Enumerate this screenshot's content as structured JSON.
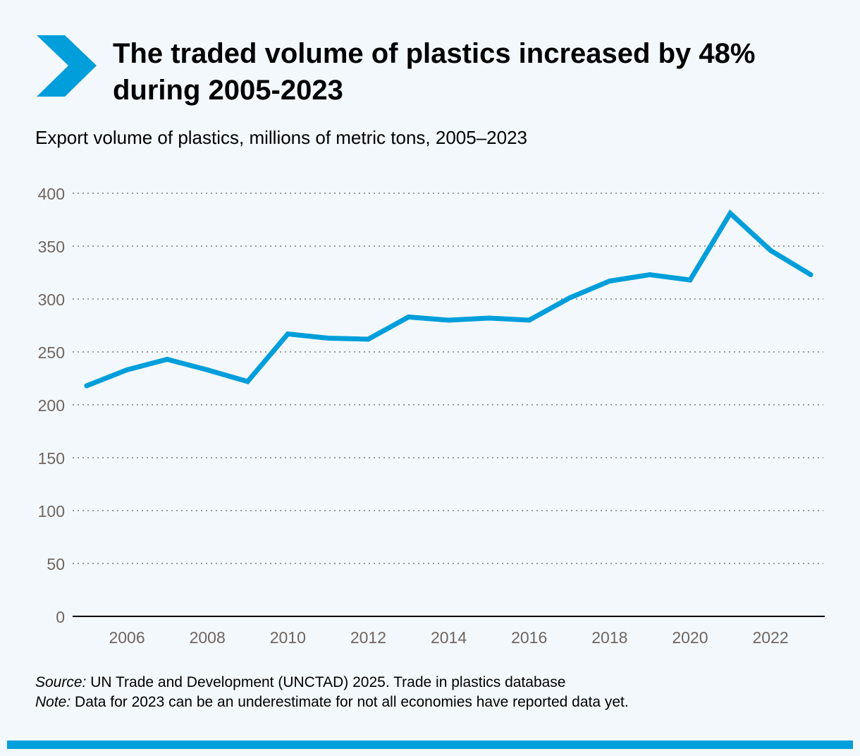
{
  "title": "The traded volume of plastics increased by 48% during 2005-2023",
  "subtitle": "Export volume of plastics, millions of metric tons, 2005–2023",
  "source_label": "Source:",
  "source_text": " UN Trade and Development (UNCTAD) 2025. Trade in plastics database",
  "note_label": "Note:",
  "note_text": " Data for 2023 can be an underestimate for not all economies have reported data yet.",
  "colors": {
    "accent": "#009edb",
    "grid": "#9a9a9a",
    "tick_text": "#6f6560",
    "background": "#f3f8fc"
  },
  "icons": {
    "header": "chevron-right-icon"
  },
  "chart_data": {
    "type": "line",
    "title": "Export volume of plastics, millions of metric tons, 2005–2023",
    "x": [
      2005,
      2006,
      2007,
      2008,
      2009,
      2010,
      2011,
      2012,
      2013,
      2014,
      2015,
      2016,
      2017,
      2018,
      2019,
      2020,
      2021,
      2022,
      2023
    ],
    "values": [
      218,
      233,
      243,
      233,
      222,
      267,
      263,
      262,
      283,
      280,
      282,
      280,
      301,
      317,
      323,
      318,
      381,
      346,
      323
    ],
    "xlim": [
      2005,
      2023
    ],
    "ylim": [
      0,
      400
    ],
    "yticks": [
      "0",
      "50",
      "100",
      "150",
      "200",
      "250",
      "300",
      "350",
      "400"
    ],
    "xticks": [
      "2006",
      "2008",
      "2010",
      "2012",
      "2014",
      "2016",
      "2018",
      "2020",
      "2022"
    ],
    "grid": "horizontal-dotted",
    "legend": "none"
  }
}
